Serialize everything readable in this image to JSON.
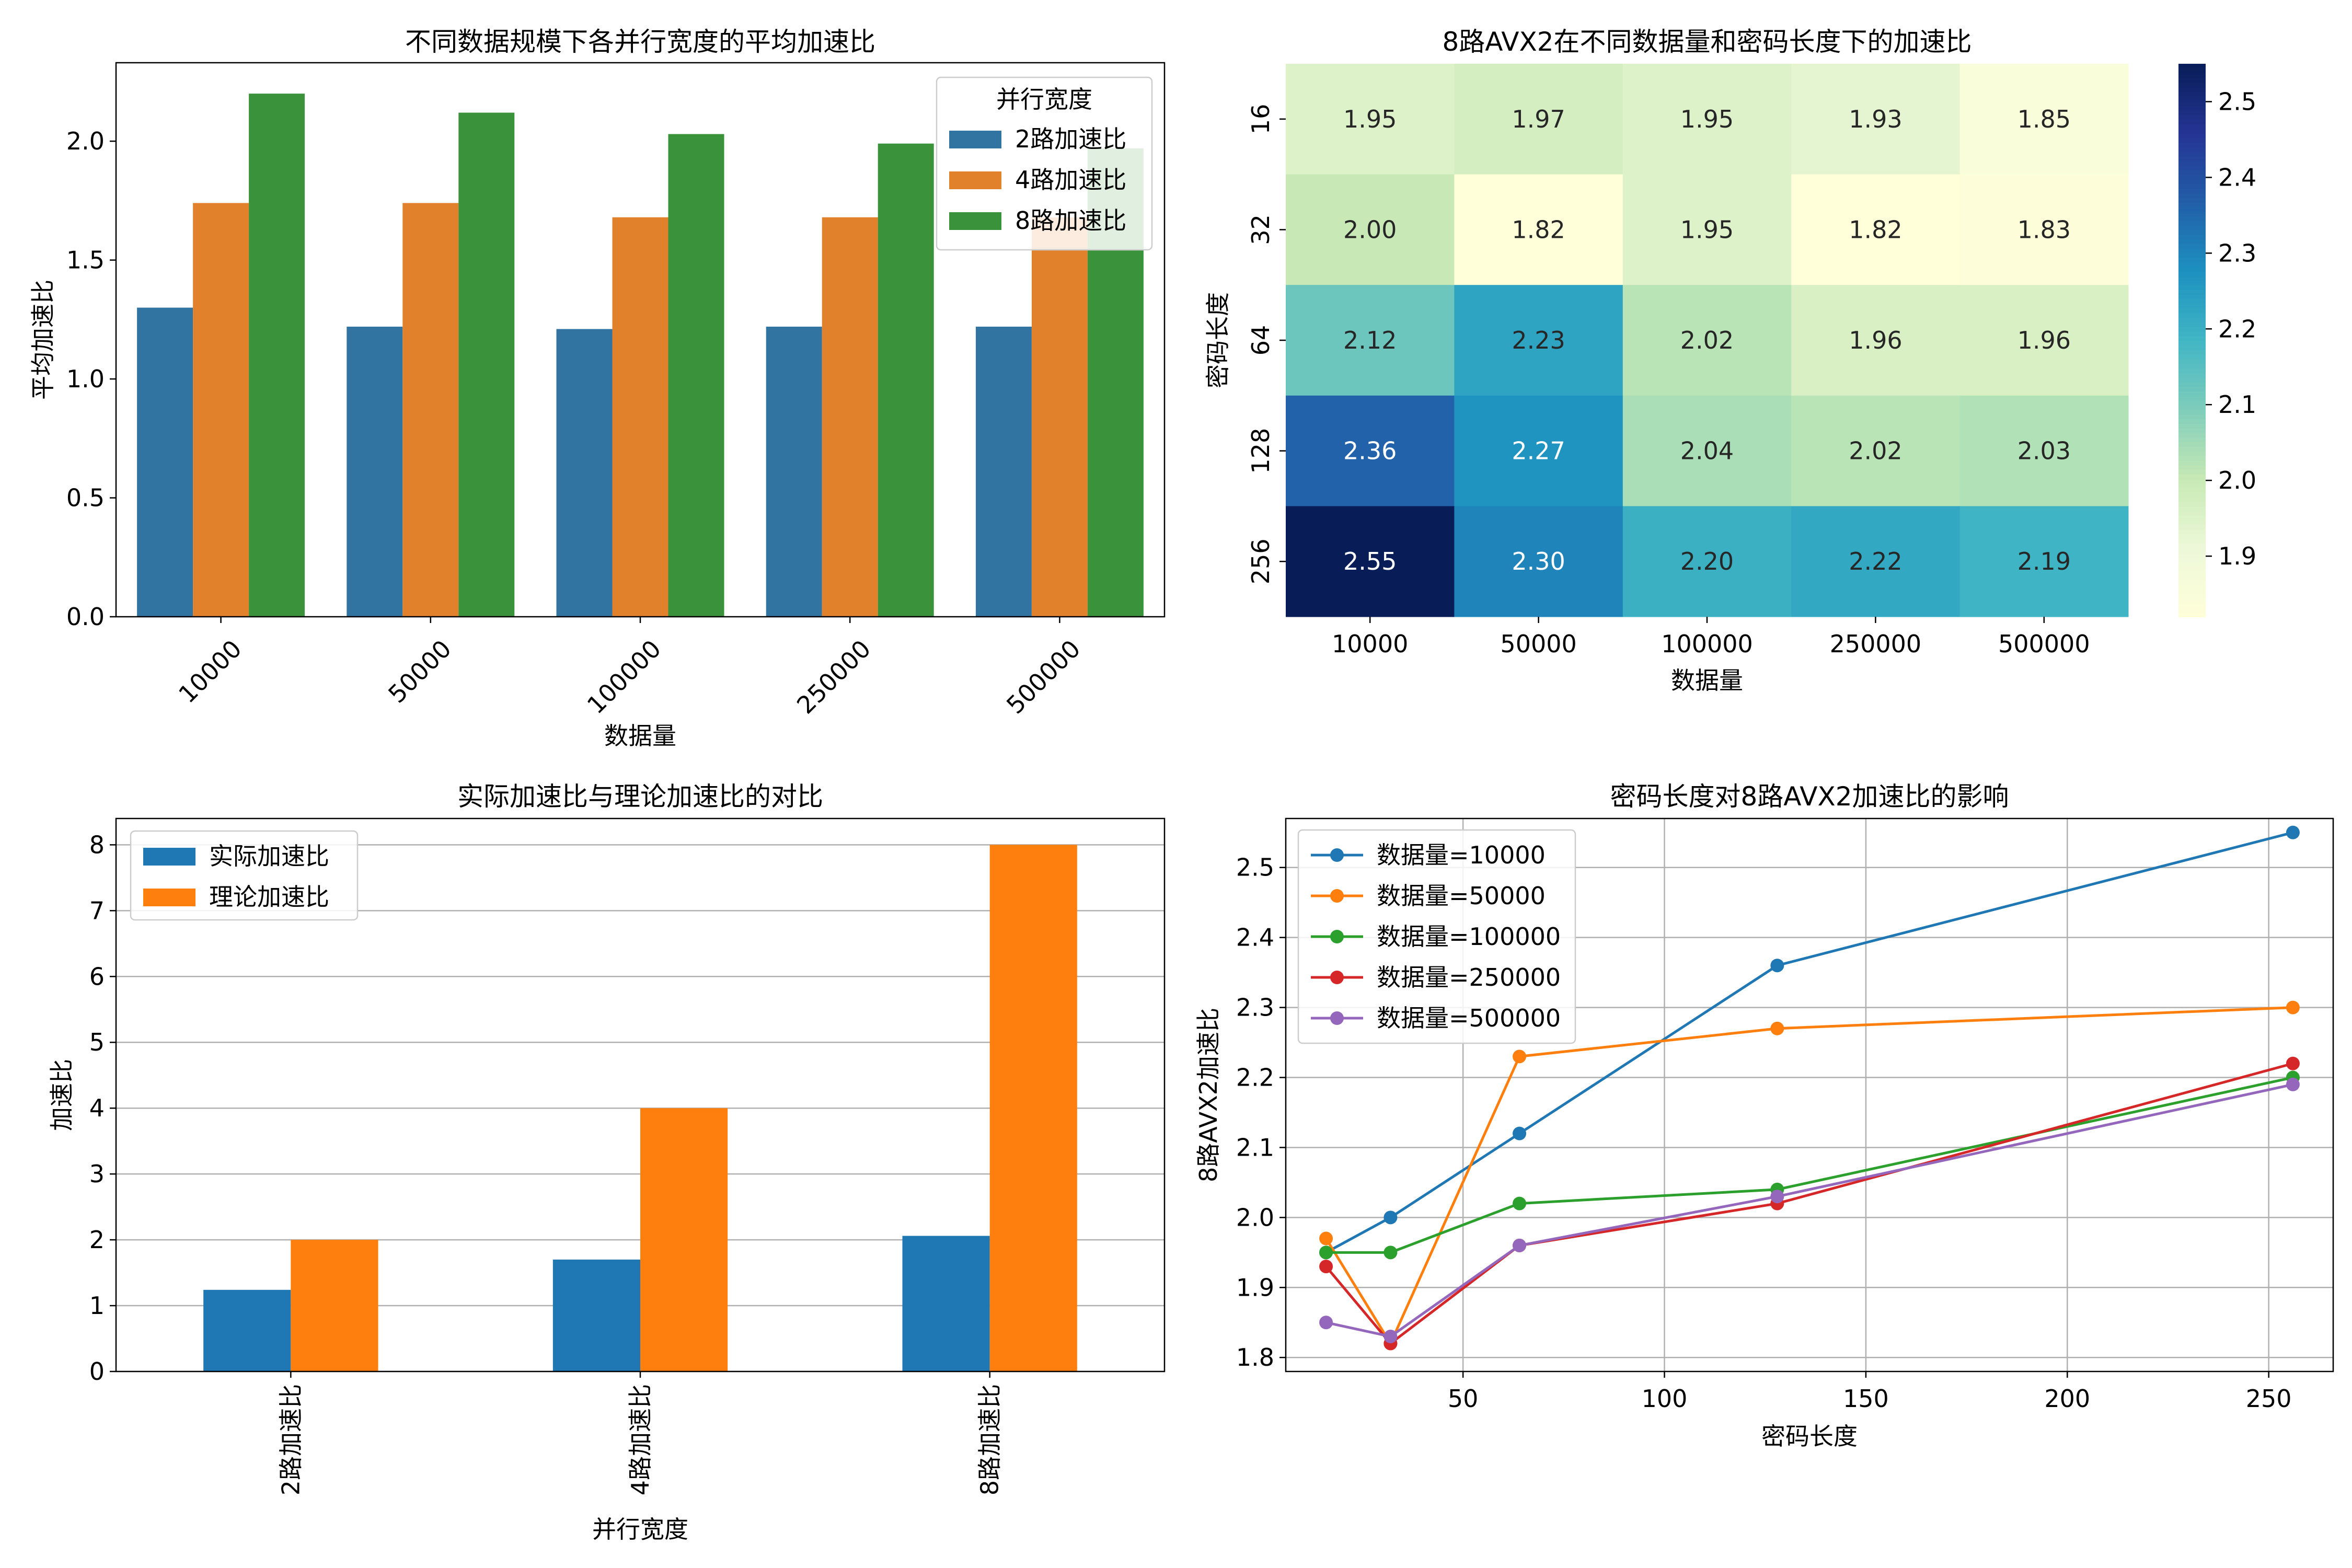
{
  "chart_data": [
    {
      "type": "bar",
      "title": "不同数据规模下各并行宽度的平均加速比",
      "xlabel": "数据量",
      "ylabel": "平均加速比",
      "categories": [
        "10000",
        "50000",
        "100000",
        "250000",
        "500000"
      ],
      "ylim": [
        0,
        2.33
      ],
      "yticks": [
        "0.0",
        "0.5",
        "1.0",
        "1.5",
        "2.0"
      ],
      "legend_title": "并行宽度",
      "legend_position": "top-right",
      "series": [
        {
          "name": "2路加速比",
          "color": "#3274a1",
          "values": [
            1.3,
            1.22,
            1.21,
            1.22,
            1.22
          ]
        },
        {
          "name": "4路加速比",
          "color": "#e1812c",
          "values": [
            1.74,
            1.74,
            1.68,
            1.68,
            1.68
          ]
        },
        {
          "name": "8路加速比",
          "color": "#3a923a",
          "values": [
            2.2,
            2.12,
            2.03,
            1.99,
            1.97
          ]
        }
      ]
    },
    {
      "type": "heatmap",
      "title": "8路AVX2在不同数据量和密码长度下的加速比",
      "xlabel": "数据量",
      "ylabel": "密码长度",
      "x": [
        "10000",
        "50000",
        "100000",
        "250000",
        "500000"
      ],
      "y": [
        "16",
        "32",
        "64",
        "128",
        "256"
      ],
      "values": [
        [
          1.95,
          1.97,
          1.95,
          1.93,
          1.85
        ],
        [
          2.0,
          1.82,
          1.95,
          1.82,
          1.83
        ],
        [
          2.12,
          2.23,
          2.02,
          1.96,
          1.96
        ],
        [
          2.36,
          2.27,
          2.04,
          2.02,
          2.03
        ],
        [
          2.55,
          2.3,
          2.2,
          2.22,
          2.19
        ]
      ],
      "value_labels": [
        [
          "1.95",
          "1.97",
          "1.95",
          "1.93",
          "1.85"
        ],
        [
          "2.00",
          "1.82",
          "1.95",
          "1.82",
          "1.83"
        ],
        [
          "2.12",
          "2.23",
          "2.02",
          "1.96",
          "1.96"
        ],
        [
          "2.36",
          "2.27",
          "2.04",
          "2.02",
          "2.03"
        ],
        [
          "2.55",
          "2.30",
          "2.20",
          "2.22",
          "2.19"
        ]
      ],
      "colormap": "YlGnBu",
      "colorbar_range": [
        1.82,
        2.55
      ],
      "colorbar_ticks": [
        "1.9",
        "2.0",
        "2.1",
        "2.2",
        "2.3",
        "2.4",
        "2.5"
      ]
    },
    {
      "type": "bar",
      "title": "实际加速比与理论加速比的对比",
      "xlabel": "并行宽度",
      "ylabel": "加速比",
      "categories": [
        "2路加速比",
        "4路加速比",
        "8路加速比"
      ],
      "ylim": [
        0,
        8.4
      ],
      "yticks": [
        "0",
        "1",
        "2",
        "3",
        "4",
        "5",
        "6",
        "7",
        "8"
      ],
      "grid": true,
      "legend_position": "top-left",
      "series": [
        {
          "name": "实际加速比",
          "color": "#1f77b4",
          "values": [
            1.24,
            1.7,
            2.06
          ]
        },
        {
          "name": "理论加速比",
          "color": "#ff7f0e",
          "values": [
            2,
            4,
            8
          ]
        }
      ]
    },
    {
      "type": "line",
      "title": "密码长度对8路AVX2加速比的影响",
      "xlabel": "密码长度",
      "ylabel": "8路AVX2加速比",
      "x": [
        16,
        32,
        64,
        128,
        256
      ],
      "xlim": [
        6,
        266
      ],
      "ylim": [
        1.78,
        2.57
      ],
      "xticks": [
        "50",
        "100",
        "150",
        "200",
        "250"
      ],
      "yticks": [
        "1.8",
        "1.9",
        "2.0",
        "2.1",
        "2.2",
        "2.3",
        "2.4",
        "2.5"
      ],
      "grid": true,
      "legend_position": "top-left",
      "series": [
        {
          "name": "数据量=10000",
          "color": "#1f77b4",
          "values": [
            1.95,
            2.0,
            2.12,
            2.36,
            2.55
          ]
        },
        {
          "name": "数据量=50000",
          "color": "#ff7f0e",
          "values": [
            1.97,
            1.82,
            2.23,
            2.27,
            2.3
          ]
        },
        {
          "name": "数据量=100000",
          "color": "#2ca02c",
          "values": [
            1.95,
            1.95,
            2.02,
            2.04,
            2.2
          ]
        },
        {
          "name": "数据量=250000",
          "color": "#d62728",
          "values": [
            1.93,
            1.82,
            1.96,
            2.02,
            2.22
          ]
        },
        {
          "name": "数据量=500000",
          "color": "#9467bd",
          "values": [
            1.85,
            1.83,
            1.96,
            2.03,
            2.19
          ]
        }
      ]
    }
  ]
}
